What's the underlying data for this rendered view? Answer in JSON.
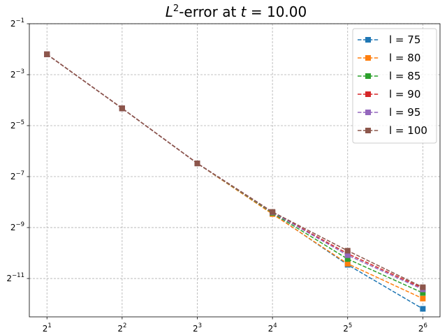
{
  "chart_data": {
    "type": "line",
    "title": {
      "prefix": "L",
      "sup": "2",
      "middle": "-error at ",
      "var": "t",
      "suffix": " = 10.00"
    },
    "xlabel": "",
    "ylabel": "",
    "x_scale": "log2",
    "y_scale": "log2",
    "x_ticks": [
      {
        "base": "2",
        "exp": "1",
        "value": 2
      },
      {
        "base": "2",
        "exp": "2",
        "value": 4
      },
      {
        "base": "2",
        "exp": "3",
        "value": 8
      },
      {
        "base": "2",
        "exp": "4",
        "value": 16
      },
      {
        "base": "2",
        "exp": "5",
        "value": 32
      },
      {
        "base": "2",
        "exp": "6",
        "value": 64
      }
    ],
    "y_ticks": [
      {
        "base": "2",
        "exp": "−1",
        "value": 0.5
      },
      {
        "base": "2",
        "exp": "−3",
        "value": 0.125
      },
      {
        "base": "2",
        "exp": "−5",
        "value": 0.03125
      },
      {
        "base": "2",
        "exp": "−7",
        "value": 0.0078125
      },
      {
        "base": "2",
        "exp": "−9",
        "value": 0.001953125
      },
      {
        "base": "2",
        "exp": "−11",
        "value": 0.00048828125
      }
    ],
    "xlim": [
      1.7,
      75
    ],
    "ylim": [
      0.000172,
      0.5
    ],
    "grid": true,
    "legend_position": "top-right",
    "x": [
      2,
      4,
      8,
      16,
      32,
      64
    ],
    "series": [
      {
        "name": "l = 75",
        "color": "#1f77b4",
        "values": [
          0.2176,
          0.05,
          0.0112,
          0.00286,
          0.00071,
          0.000214
        ]
      },
      {
        "name": "l = 80",
        "color": "#ff7f0e",
        "values": [
          0.2176,
          0.05,
          0.0112,
          0.00282,
          0.00073,
          0.000283
        ]
      },
      {
        "name": "l = 85",
        "color": "#2ca02c",
        "values": [
          0.2176,
          0.05,
          0.0112,
          0.00291,
          0.00083,
          0.00033
        ]
      },
      {
        "name": "l = 90",
        "color": "#d62728",
        "values": [
          0.2176,
          0.05,
          0.0112,
          0.00297,
          0.00096,
          0.000375
        ]
      },
      {
        "name": "l = 95",
        "color": "#9467bd",
        "values": [
          0.2176,
          0.05,
          0.0112,
          0.00296,
          0.00092,
          0.000363
        ]
      },
      {
        "name": "l = 100",
        "color": "#8c564b",
        "values": [
          0.2176,
          0.05,
          0.0112,
          0.00299,
          0.00104,
          0.000385
        ]
      }
    ]
  }
}
